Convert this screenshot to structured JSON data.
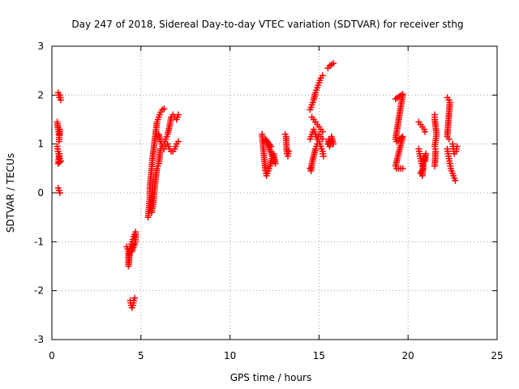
{
  "chart_data": {
    "type": "scatter",
    "title": "Day 247 of 2018, Sidereal Day-to-day VTEC variation (SDTVAR) for receiver sthg",
    "xlabel": "GPS time / hours",
    "ylabel": "SDTVAR / TECUs",
    "xlim": [
      0,
      25
    ],
    "ylim": [
      -3,
      3
    ],
    "xticks": [
      "0",
      "5",
      "10",
      "15",
      "20",
      "25"
    ],
    "yticks": [
      "-3",
      "-2",
      "-1",
      "0",
      "1",
      "2",
      "3"
    ],
    "grid": true,
    "marker": "+",
    "color": "#ff0000",
    "series": [
      {
        "name": "SDTVAR",
        "segments": [
          [
            [
              0.35,
              2.05
            ],
            [
              0.42,
              1.95
            ],
            [
              0.45,
              2.0
            ],
            [
              0.5,
              1.9
            ]
          ],
          [
            [
              0.3,
              1.45
            ],
            [
              0.35,
              1.3
            ],
            [
              0.4,
              1.2
            ],
            [
              0.45,
              1.3
            ],
            [
              0.4,
              1.05
            ]
          ],
          [
            [
              0.3,
              0.95
            ],
            [
              0.35,
              0.85
            ],
            [
              0.4,
              0.75
            ],
            [
              0.45,
              0.7
            ],
            [
              0.5,
              0.65
            ],
            [
              0.35,
              0.6
            ],
            [
              0.42,
              0.8
            ]
          ],
          [
            [
              0.35,
              0.1
            ],
            [
              0.4,
              0.05
            ],
            [
              0.45,
              0.0
            ]
          ],
          [
            [
              4.2,
              -1.1
            ],
            [
              4.3,
              -1.2
            ],
            [
              4.3,
              -1.35
            ],
            [
              4.3,
              -1.5
            ],
            [
              4.4,
              -1.1
            ],
            [
              4.5,
              -1.0
            ],
            [
              4.6,
              -0.9
            ],
            [
              4.7,
              -0.8
            ],
            [
              4.7,
              -1.0
            ],
            [
              4.5,
              -1.2
            ]
          ],
          [
            [
              4.4,
              -2.2
            ],
            [
              4.45,
              -2.3
            ],
            [
              4.5,
              -2.35
            ],
            [
              4.55,
              -2.3
            ],
            [
              4.6,
              -2.2
            ],
            [
              4.65,
              -2.15
            ]
          ],
          [
            [
              5.4,
              -0.5
            ],
            [
              5.45,
              -0.3
            ],
            [
              5.5,
              -0.1
            ],
            [
              5.5,
              0.1
            ],
            [
              5.55,
              0.3
            ],
            [
              5.6,
              0.5
            ],
            [
              5.65,
              0.7
            ],
            [
              5.7,
              0.85
            ],
            [
              5.75,
              1.0
            ],
            [
              5.8,
              1.15
            ],
            [
              5.85,
              1.3
            ],
            [
              5.9,
              1.45
            ],
            [
              6.0,
              1.55
            ],
            [
              6.1,
              1.65
            ],
            [
              6.2,
              1.7
            ],
            [
              6.3,
              1.72
            ]
          ],
          [
            [
              5.6,
              -0.4
            ],
            [
              5.7,
              -0.2
            ],
            [
              5.75,
              0.0
            ],
            [
              5.8,
              0.2
            ],
            [
              5.85,
              0.35
            ],
            [
              5.9,
              0.5
            ],
            [
              6.0,
              0.6
            ],
            [
              6.05,
              0.75
            ],
            [
              6.1,
              0.9
            ],
            [
              6.2,
              0.95
            ],
            [
              6.3,
              1.0
            ],
            [
              6.4,
              1.1
            ],
            [
              6.5,
              1.2
            ],
            [
              6.6,
              1.35
            ],
            [
              6.7,
              1.55
            ],
            [
              6.8,
              1.6
            ],
            [
              6.9,
              1.55
            ],
            [
              7.0,
              1.5
            ],
            [
              7.1,
              1.6
            ]
          ],
          [
            [
              6.0,
              1.2
            ],
            [
              6.1,
              1.05
            ],
            [
              6.2,
              0.95
            ],
            [
              6.3,
              0.9
            ],
            [
              6.4,
              0.95
            ],
            [
              6.5,
              1.0
            ],
            [
              6.6,
              0.9
            ],
            [
              6.7,
              0.85
            ],
            [
              6.8,
              0.85
            ],
            [
              6.9,
              0.9
            ],
            [
              7.0,
              1.0
            ],
            [
              7.1,
              1.05
            ]
          ],
          [
            [
              11.8,
              1.2
            ],
            [
              11.85,
              1.0
            ],
            [
              11.9,
              0.8
            ],
            [
              11.95,
              0.6
            ],
            [
              12.0,
              0.45
            ],
            [
              12.05,
              0.35
            ],
            [
              12.15,
              0.45
            ],
            [
              12.25,
              0.55
            ],
            [
              12.35,
              0.7
            ],
            [
              12.45,
              0.8
            ],
            [
              12.55,
              0.6
            ],
            [
              12.0,
              1.1
            ],
            [
              12.3,
              0.95
            ]
          ],
          [
            [
              13.1,
              1.2
            ],
            [
              13.15,
              1.15
            ],
            [
              13.2,
              0.8
            ],
            [
              13.25,
              0.75
            ],
            [
              13.3,
              0.85
            ]
          ],
          [
            [
              14.5,
              0.5
            ],
            [
              14.55,
              0.45
            ],
            [
              14.6,
              0.6
            ],
            [
              14.7,
              0.75
            ],
            [
              14.8,
              0.9
            ],
            [
              14.9,
              1.0
            ],
            [
              15.0,
              1.05
            ],
            [
              15.1,
              0.95
            ],
            [
              15.2,
              0.85
            ],
            [
              15.25,
              0.75
            ]
          ],
          [
            [
              14.5,
              1.1
            ],
            [
              14.6,
              1.2
            ],
            [
              14.7,
              1.3
            ],
            [
              14.8,
              1.2
            ],
            [
              14.9,
              1.1
            ],
            [
              15.0,
              1.2
            ],
            [
              15.1,
              1.15
            ],
            [
              15.2,
              1.1
            ]
          ],
          [
            [
              14.5,
              1.7
            ],
            [
              14.6,
              1.8
            ],
            [
              14.7,
              1.9
            ],
            [
              14.8,
              2.05
            ],
            [
              14.9,
              2.15
            ],
            [
              15.0,
              2.25
            ],
            [
              15.1,
              2.35
            ],
            [
              15.2,
              2.4
            ]
          ],
          [
            [
              14.6,
              1.55
            ],
            [
              14.7,
              1.5
            ],
            [
              14.8,
              1.45
            ],
            [
              14.9,
              1.4
            ],
            [
              15.0,
              1.35
            ],
            [
              15.1,
              1.3
            ],
            [
              15.2,
              1.25
            ]
          ],
          [
            [
              15.5,
              2.55
            ],
            [
              15.6,
              2.6
            ],
            [
              15.7,
              2.62
            ],
            [
              15.8,
              2.65
            ]
          ],
          [
            [
              15.5,
              1.0
            ],
            [
              15.55,
              1.1
            ],
            [
              15.6,
              0.95
            ],
            [
              15.7,
              1.05
            ],
            [
              15.8,
              1.0
            ],
            [
              15.7,
              1.15
            ]
          ],
          [
            [
              19.3,
              1.92
            ],
            [
              19.7,
              2.02
            ],
            [
              19.3,
              1.1
            ],
            [
              19.35,
              1.05
            ],
            [
              19.7,
              1.15
            ],
            [
              19.3,
              0.55
            ],
            [
              19.35,
              0.5
            ],
            [
              19.7,
              0.5
            ]
          ],
          [
            [
              20.6,
              1.45
            ],
            [
              20.7,
              1.4
            ],
            [
              20.8,
              1.35
            ],
            [
              20.9,
              1.3
            ],
            [
              20.95,
              1.25
            ]
          ],
          [
            [
              20.6,
              0.9
            ],
            [
              20.65,
              0.8
            ],
            [
              20.7,
              0.7
            ],
            [
              20.75,
              0.6
            ],
            [
              20.8,
              0.55
            ],
            [
              20.85,
              0.5
            ],
            [
              20.7,
              0.4
            ],
            [
              20.8,
              0.35
            ],
            [
              20.9,
              0.75
            ],
            [
              20.95,
              0.65
            ],
            [
              21.0,
              0.8
            ]
          ],
          [
            [
              21.5,
              1.6
            ],
            [
              21.5,
              1.5
            ],
            [
              21.55,
              1.35
            ],
            [
              21.6,
              1.2
            ],
            [
              21.5,
              0.95
            ],
            [
              21.55,
              0.85
            ],
            [
              21.5,
              0.55
            ]
          ],
          [
            [
              22.2,
              1.95
            ],
            [
              22.3,
              1.9
            ],
            [
              22.35,
              1.85
            ],
            [
              22.2,
              1.15
            ],
            [
              22.3,
              1.1
            ]
          ],
          [
            [
              22.2,
              0.9
            ],
            [
              22.25,
              0.8
            ],
            [
              22.3,
              0.7
            ],
            [
              22.35,
              0.6
            ],
            [
              22.4,
              0.5
            ],
            [
              22.45,
              0.45
            ],
            [
              22.5,
              0.4
            ],
            [
              22.55,
              0.35
            ],
            [
              22.6,
              0.3
            ],
            [
              22.65,
              0.25
            ]
          ],
          [
            [
              22.5,
              1.0
            ],
            [
              22.55,
              0.9
            ],
            [
              22.6,
              0.8
            ],
            [
              22.7,
              0.85
            ],
            [
              22.75,
              0.95
            ]
          ]
        ]
      }
    ]
  }
}
